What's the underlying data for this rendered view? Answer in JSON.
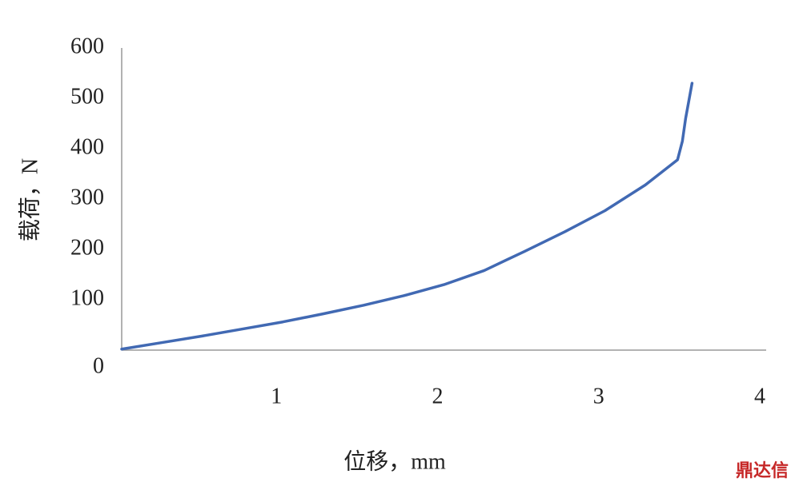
{
  "chart_data": {
    "type": "line",
    "x_label": "位移，mm",
    "y_label": "载荷，N",
    "watermark": "鼎达信",
    "x": [
      0,
      0.25,
      0.5,
      0.75,
      1,
      1.25,
      1.5,
      1.75,
      2,
      2.25,
      2.5,
      2.75,
      3,
      3.25,
      3.45,
      3.48,
      3.5,
      3.54
    ],
    "series": [
      {
        "color": "#4169b3",
        "values": [
          2,
          15,
          28,
          42,
          56,
          72,
          89,
          108,
          130,
          158,
          196,
          235,
          277,
          328,
          378,
          415,
          460,
          530
        ]
      }
    ],
    "xlim": [
      0,
      4
    ],
    "xticks": [
      1,
      2,
      3,
      4
    ],
    "ylim": [
      0,
      600
    ],
    "yticks": [
      0,
      100,
      200,
      300,
      400,
      500,
      600
    ]
  }
}
